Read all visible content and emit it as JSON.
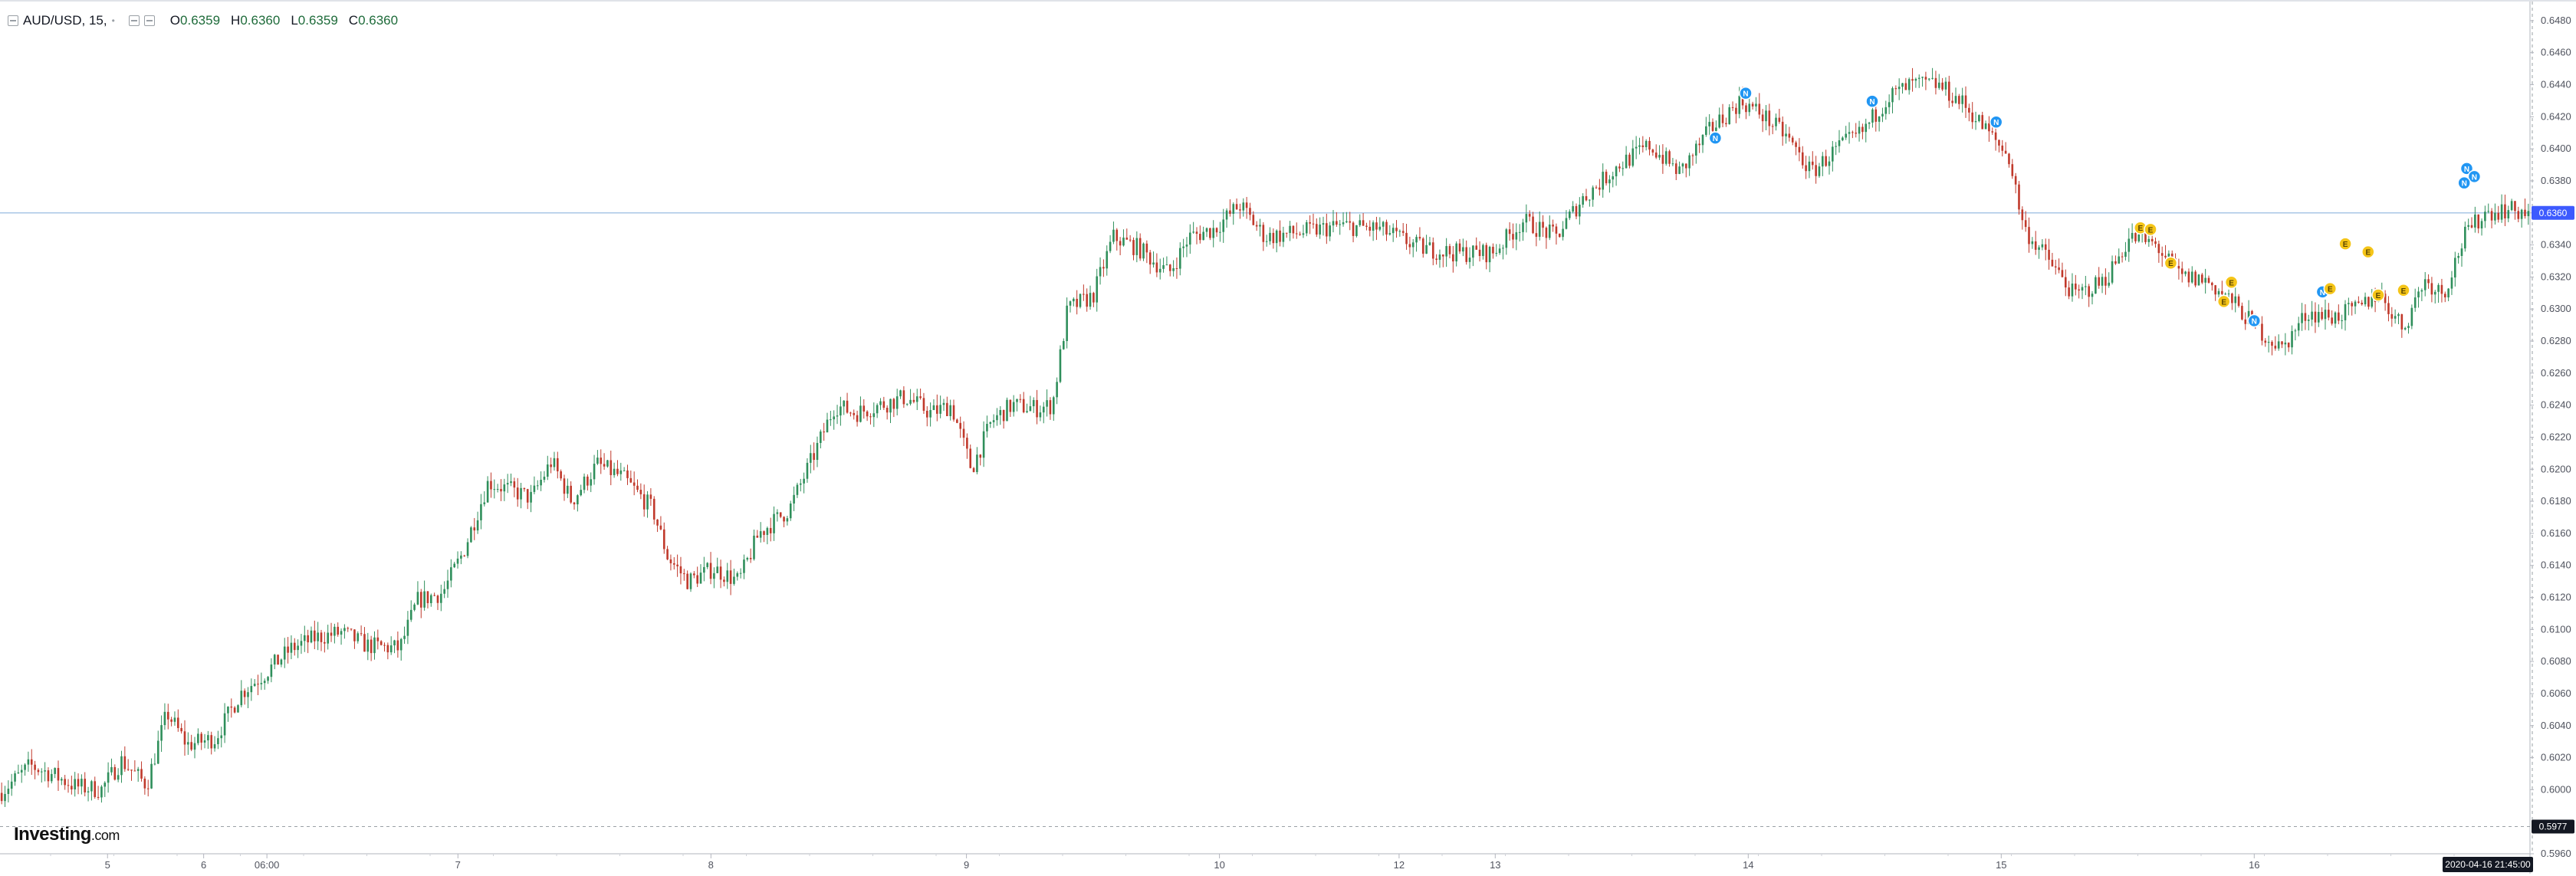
{
  "legend": {
    "symbol": "AUD/USD, 15,",
    "open_label": "O",
    "open": "0.6359",
    "high_label": "H",
    "high": "0.6360",
    "low_label": "L",
    "low": "0.6359",
    "close_label": "C",
    "close": "0.6360"
  },
  "logo": {
    "main": "Investing",
    "suffix": ".com"
  },
  "crosshair": {
    "price_label": "0.5977",
    "time_label": "2020-04-16 21:45:00"
  },
  "last_price": {
    "label": "0.6360",
    "color": "#3d5afe"
  },
  "colors": {
    "up": "#2f8f5b",
    "down": "#c0392b",
    "marker_blue": "#2196f3",
    "marker_yellow": "#f5c518"
  },
  "chart_data": {
    "type": "candlestick",
    "symbol": "AUD/USD",
    "interval": "15",
    "ylim": [
      0.596,
      0.649
    ],
    "y_ticks": [
      "0.6480",
      "0.6460",
      "0.6440",
      "0.6420",
      "0.6400",
      "0.6380",
      "0.6360",
      "0.6340",
      "0.6320",
      "0.6300",
      "0.6280",
      "0.6260",
      "0.6240",
      "0.6220",
      "0.6200",
      "0.6180",
      "0.6160",
      "0.6140",
      "0.6120",
      "0.6100",
      "0.6080",
      "0.6060",
      "0.6040",
      "0.6020",
      "0.6000",
      "0.5960"
    ],
    "x_ticks": [
      {
        "label": "5",
        "pos": 0.0425
      },
      {
        "label": "6",
        "pos": 0.0805
      },
      {
        "label": "06:00",
        "pos": 0.1055
      },
      {
        "label": "7",
        "pos": 0.181
      },
      {
        "label": "8",
        "pos": 0.281
      },
      {
        "label": "9",
        "pos": 0.382
      },
      {
        "label": "10",
        "pos": 0.482
      },
      {
        "label": "12",
        "pos": 0.553
      },
      {
        "label": "13",
        "pos": 0.591
      },
      {
        "label": "14",
        "pos": 0.691
      },
      {
        "label": "15",
        "pos": 0.791
      },
      {
        "label": "16",
        "pos": 0.891
      }
    ],
    "price_path": [
      [
        0.0,
        0.5998
      ],
      [
        0.012,
        0.6015
      ],
      [
        0.02,
        0.601
      ],
      [
        0.03,
        0.6002
      ],
      [
        0.04,
        0.6
      ],
      [
        0.048,
        0.6018
      ],
      [
        0.058,
        0.6003
      ],
      [
        0.066,
        0.6048
      ],
      [
        0.074,
        0.6028
      ],
      [
        0.085,
        0.6032
      ],
      [
        0.095,
        0.606
      ],
      [
        0.105,
        0.6073
      ],
      [
        0.115,
        0.6088
      ],
      [
        0.125,
        0.6095
      ],
      [
        0.135,
        0.6098
      ],
      [
        0.145,
        0.609
      ],
      [
        0.158,
        0.6088
      ],
      [
        0.165,
        0.6118
      ],
      [
        0.175,
        0.6123
      ],
      [
        0.183,
        0.6148
      ],
      [
        0.193,
        0.6192
      ],
      [
        0.2,
        0.6188
      ],
      [
        0.21,
        0.6182
      ],
      [
        0.218,
        0.6205
      ],
      [
        0.226,
        0.618
      ],
      [
        0.236,
        0.6203
      ],
      [
        0.246,
        0.6195
      ],
      [
        0.258,
        0.6175
      ],
      [
        0.264,
        0.6145
      ],
      [
        0.272,
        0.613
      ],
      [
        0.282,
        0.6138
      ],
      [
        0.292,
        0.613
      ],
      [
        0.3,
        0.616
      ],
      [
        0.312,
        0.6175
      ],
      [
        0.322,
        0.621
      ],
      [
        0.33,
        0.624
      ],
      [
        0.338,
        0.6235
      ],
      [
        0.348,
        0.624
      ],
      [
        0.358,
        0.6245
      ],
      [
        0.368,
        0.6235
      ],
      [
        0.376,
        0.624
      ],
      [
        0.384,
        0.62
      ],
      [
        0.392,
        0.623
      ],
      [
        0.4,
        0.624
      ],
      [
        0.41,
        0.6238
      ],
      [
        0.416,
        0.624
      ],
      [
        0.422,
        0.63
      ],
      [
        0.432,
        0.6308
      ],
      [
        0.44,
        0.6345
      ],
      [
        0.45,
        0.6338
      ],
      [
        0.462,
        0.6322
      ],
      [
        0.47,
        0.6345
      ],
      [
        0.48,
        0.635
      ],
      [
        0.49,
        0.6365
      ],
      [
        0.5,
        0.6345
      ],
      [
        0.515,
        0.6348
      ],
      [
        0.53,
        0.6352
      ],
      [
        0.545,
        0.635
      ],
      [
        0.562,
        0.6338
      ],
      [
        0.575,
        0.6335
      ],
      [
        0.59,
        0.6335
      ],
      [
        0.602,
        0.6355
      ],
      [
        0.615,
        0.6345
      ],
      [
        0.625,
        0.6368
      ],
      [
        0.64,
        0.639
      ],
      [
        0.652,
        0.6402
      ],
      [
        0.664,
        0.6385
      ],
      [
        0.676,
        0.6412
      ],
      [
        0.688,
        0.643
      ],
      [
        0.696,
        0.6422
      ],
      [
        0.706,
        0.6408
      ],
      [
        0.716,
        0.6385
      ],
      [
        0.726,
        0.64
      ],
      [
        0.736,
        0.641
      ],
      [
        0.746,
        0.6432
      ],
      [
        0.756,
        0.644
      ],
      [
        0.766,
        0.644
      ],
      [
        0.776,
        0.6428
      ],
      [
        0.786,
        0.641
      ],
      [
        0.794,
        0.6395
      ],
      [
        0.8,
        0.635
      ],
      [
        0.81,
        0.633
      ],
      [
        0.82,
        0.6308
      ],
      [
        0.832,
        0.6318
      ],
      [
        0.842,
        0.6345
      ],
      [
        0.852,
        0.634
      ],
      [
        0.862,
        0.632
      ],
      [
        0.872,
        0.6318
      ],
      [
        0.882,
        0.6305
      ],
      [
        0.892,
        0.6288
      ],
      [
        0.902,
        0.6275
      ],
      [
        0.912,
        0.6298
      ],
      [
        0.922,
        0.6295
      ],
      [
        0.932,
        0.63
      ],
      [
        0.94,
        0.631
      ],
      [
        0.95,
        0.6288
      ],
      [
        0.958,
        0.6318
      ],
      [
        0.966,
        0.631
      ],
      [
        0.974,
        0.6345
      ],
      [
        0.982,
        0.636
      ],
      [
        0.99,
        0.6362
      ],
      [
        1.0,
        0.636
      ]
    ],
    "event_markers": [
      {
        "x": 0.678,
        "price": 0.64,
        "color": "blue",
        "letter": "N"
      },
      {
        "x": 0.69,
        "price": 0.6428,
        "color": "blue",
        "letter": "N"
      },
      {
        "x": 0.74,
        "price": 0.6423,
        "color": "blue",
        "letter": "N"
      },
      {
        "x": 0.789,
        "price": 0.641,
        "color": "blue",
        "letter": "N"
      },
      {
        "x": 0.846,
        "price": 0.6344,
        "color": "yellow",
        "letter": "E"
      },
      {
        "x": 0.85,
        "price": 0.6343,
        "color": "yellow",
        "letter": "E"
      },
      {
        "x": 0.858,
        "price": 0.6322,
        "color": "yellow",
        "letter": "E"
      },
      {
        "x": 0.879,
        "price": 0.6298,
        "color": "yellow",
        "letter": "E"
      },
      {
        "x": 0.882,
        "price": 0.631,
        "color": "yellow",
        "letter": "E"
      },
      {
        "x": 0.891,
        "price": 0.6286,
        "color": "blue",
        "letter": "N"
      },
      {
        "x": 0.918,
        "price": 0.6304,
        "color": "blue",
        "letter": "N"
      },
      {
        "x": 0.921,
        "price": 0.6306,
        "color": "yellow",
        "letter": "E"
      },
      {
        "x": 0.927,
        "price": 0.6334,
        "color": "yellow",
        "letter": "E"
      },
      {
        "x": 0.936,
        "price": 0.6329,
        "color": "yellow",
        "letter": "E"
      },
      {
        "x": 0.94,
        "price": 0.6302,
        "color": "yellow",
        "letter": "E"
      },
      {
        "x": 0.95,
        "price": 0.6305,
        "color": "yellow",
        "letter": "E"
      },
      {
        "x": 0.975,
        "price": 0.6381,
        "color": "blue",
        "letter": "N"
      },
      {
        "x": 0.978,
        "price": 0.6376,
        "color": "blue",
        "letter": "N"
      },
      {
        "x": 0.974,
        "price": 0.6372,
        "color": "blue",
        "letter": "N"
      }
    ]
  }
}
